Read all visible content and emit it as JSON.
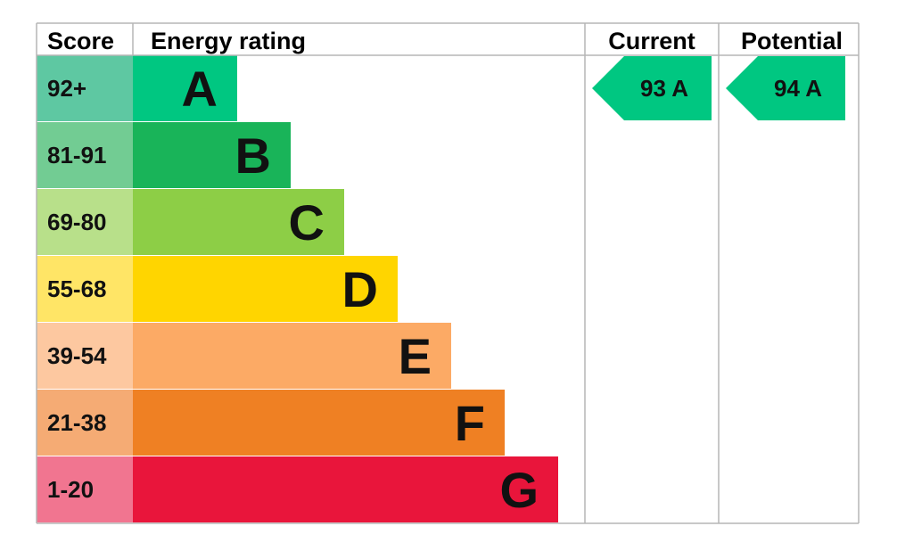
{
  "chart_data": {
    "type": "table",
    "headers": {
      "score": "Score",
      "energy_rating": "Energy rating",
      "current": "Current",
      "potential": "Potential"
    },
    "bands": [
      {
        "score": "92+",
        "letter": "A",
        "color": "#00c781",
        "score_bg": "#5ec8a2"
      },
      {
        "score": "81-91",
        "letter": "B",
        "color": "#19b459",
        "score_bg": "#72cc93"
      },
      {
        "score": "69-80",
        "letter": "C",
        "color": "#8dce46",
        "score_bg": "#b8e08a"
      },
      {
        "score": "55-68",
        "letter": "D",
        "color": "#ffd500",
        "score_bg": "#ffe566"
      },
      {
        "score": "39-54",
        "letter": "E",
        "color": "#fcaa65",
        "score_bg": "#fdc8a0"
      },
      {
        "score": "21-38",
        "letter": "F",
        "color": "#ef8023",
        "score_bg": "#f5ab74"
      },
      {
        "score": "1-20",
        "letter": "G",
        "color": "#e9153b",
        "score_bg": "#f17590"
      }
    ],
    "current": {
      "value": 93,
      "letter": "A",
      "label": "93  A",
      "color": "#00c781"
    },
    "potential": {
      "value": 94,
      "letter": "A",
      "label": "94  A",
      "color": "#00c781"
    }
  }
}
